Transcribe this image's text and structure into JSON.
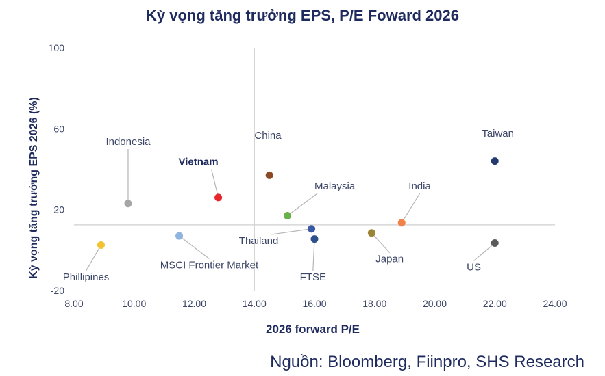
{
  "chart_data": {
    "type": "scatter",
    "title": "Kỳ vọng tăng trưởng EPS, P/E Foward 2026",
    "xlabel": "2026 forward P/E",
    "ylabel": "Kỳ vọng tăng trưởng EPS 2026 (%)",
    "xlim": [
      8,
      24
    ],
    "ylim": [
      -20,
      100
    ],
    "x_ticks": [
      "8.00",
      "10.00",
      "12.00",
      "14.00",
      "16.00",
      "18.00",
      "20.00",
      "22.00",
      "24.00"
    ],
    "y_ticks": [
      "-20",
      "20",
      "60",
      "100"
    ],
    "reference_lines": {
      "x": 14,
      "y": 12.5
    },
    "grid": false,
    "legend": "none",
    "points": [
      {
        "label": "Indonesia",
        "x": 9.8,
        "y": 23,
        "color": "#a6a6a6",
        "bold": false
      },
      {
        "label": "Vietnam",
        "x": 12.8,
        "y": 26,
        "color": "#e8252a",
        "bold": true
      },
      {
        "label": "China",
        "x": 14.5,
        "y": 37,
        "color": "#8b4a24",
        "bold": false
      },
      {
        "label": "Malaysia",
        "x": 15.1,
        "y": 17,
        "color": "#6ab04c",
        "bold": false
      },
      {
        "label": "Thailand",
        "x": 15.9,
        "y": 10.5,
        "color": "#3a5aa8",
        "bold": false
      },
      {
        "label": "FTSE",
        "x": 16.0,
        "y": 5.5,
        "color": "#2d4f8a",
        "bold": false
      },
      {
        "label": "India",
        "x": 18.9,
        "y": 13.5,
        "color": "#f0824a",
        "bold": false
      },
      {
        "label": "Japan",
        "x": 17.9,
        "y": 8.5,
        "color": "#9c8436",
        "bold": false
      },
      {
        "label": "Taiwan",
        "x": 22.0,
        "y": 44,
        "color": "#233a6e",
        "bold": false
      },
      {
        "label": "US",
        "x": 22.0,
        "y": 3.5,
        "color": "#5a5a5a",
        "bold": false
      },
      {
        "label": "MSCI Frontier Market",
        "x": 11.5,
        "y": 7,
        "color": "#90b4e0",
        "bold": false
      },
      {
        "label": "Phillipines",
        "x": 8.9,
        "y": 2.5,
        "color": "#f2c230",
        "bold": false
      }
    ]
  },
  "source": "Nguồn: Bloomberg, Fiinpro, SHS Research"
}
